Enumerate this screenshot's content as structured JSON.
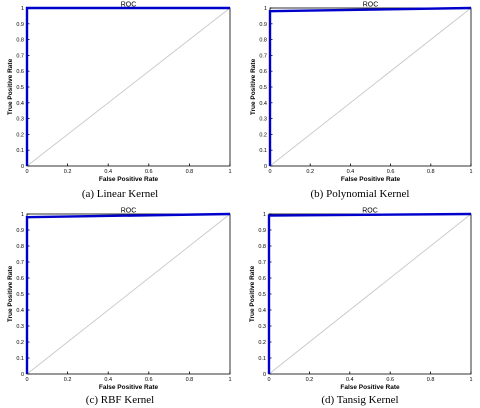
{
  "chart_data": [
    {
      "type": "line",
      "title": "ROC",
      "xlabel": "False Positive Rate",
      "ylabel": "True Positive Rate",
      "xlim": [
        0,
        1
      ],
      "ylim": [
        0,
        1
      ],
      "xticks": [
        "0",
        "0.2",
        "0.4",
        "0.6",
        "0.8",
        "1"
      ],
      "yticks": [
        "0",
        "0.1",
        "0.2",
        "0.3",
        "0.4",
        "0.5",
        "0.6",
        "0.7",
        "0.8",
        "0.9",
        "1"
      ],
      "grid": false,
      "series": [
        {
          "role": "roc",
          "color": "#0000cc",
          "x": [
            0,
            0,
            1
          ],
          "y": [
            0,
            1,
            1
          ]
        },
        {
          "role": "diagonal",
          "color": "#c8c8c8",
          "x": [
            0,
            1
          ],
          "y": [
            0,
            1
          ]
        }
      ],
      "caption": "(a)   Linear Kernel"
    },
    {
      "type": "line",
      "title": "ROC",
      "xlabel": "False Positive Rate",
      "ylabel": "True Positive Rate",
      "xlim": [
        0,
        1
      ],
      "ylim": [
        0,
        1
      ],
      "xticks": [
        "0",
        "0.2",
        "0.4",
        "0.6",
        "0.8",
        "1"
      ],
      "yticks": [
        "0",
        "0.1",
        "0.2",
        "0.3",
        "0.4",
        "0.5",
        "0.6",
        "0.7",
        "0.8",
        "0.9",
        "1"
      ],
      "grid": false,
      "series": [
        {
          "role": "roc",
          "color": "#0000cc",
          "x": [
            0,
            0,
            1
          ],
          "y": [
            0,
            0.98,
            1
          ]
        },
        {
          "role": "diagonal",
          "color": "#c8c8c8",
          "x": [
            0,
            1
          ],
          "y": [
            0,
            1
          ]
        }
      ],
      "caption": "(b) Polynomial Kernel"
    },
    {
      "type": "line",
      "title": "ROC",
      "xlabel": "False Positive Rate",
      "ylabel": "True Positive Rate",
      "xlim": [
        0,
        1
      ],
      "ylim": [
        0,
        1
      ],
      "xticks": [
        "0",
        "0.2",
        "0.4",
        "0.6",
        "0.8",
        "1"
      ],
      "yticks": [
        "0",
        "0.1",
        "0.2",
        "0.3",
        "0.4",
        "0.5",
        "0.6",
        "0.7",
        "0.8",
        "0.9",
        "1"
      ],
      "grid": false,
      "series": [
        {
          "role": "roc",
          "color": "#0000cc",
          "x": [
            0,
            0,
            1
          ],
          "y": [
            0,
            0.98,
            1
          ]
        },
        {
          "role": "diagonal",
          "color": "#c8c8c8",
          "x": [
            0,
            1
          ],
          "y": [
            0,
            1
          ]
        }
      ],
      "caption": "(c) RBF Kernel"
    },
    {
      "type": "line",
      "title": "ROC",
      "xlabel": "False Positive Rate",
      "ylabel": "True Positive Rate",
      "xlim": [
        0,
        1
      ],
      "ylim": [
        0,
        1
      ],
      "xticks": [
        "0",
        "0.2",
        "0.4",
        "0.6",
        "0.8",
        "1"
      ],
      "yticks": [
        "0",
        "0.1",
        "0.2",
        "0.3",
        "0.4",
        "0.5",
        "0.6",
        "0.7",
        "0.8",
        "0.9",
        "1"
      ],
      "grid": false,
      "series": [
        {
          "role": "roc",
          "color": "#0000cc",
          "x": [
            0,
            0,
            1
          ],
          "y": [
            0,
            0.99,
            1
          ]
        },
        {
          "role": "diagonal",
          "color": "#c8c8c8",
          "x": [
            0,
            1
          ],
          "y": [
            0,
            1
          ]
        }
      ],
      "caption": "(d) Tansig Kernel"
    }
  ]
}
